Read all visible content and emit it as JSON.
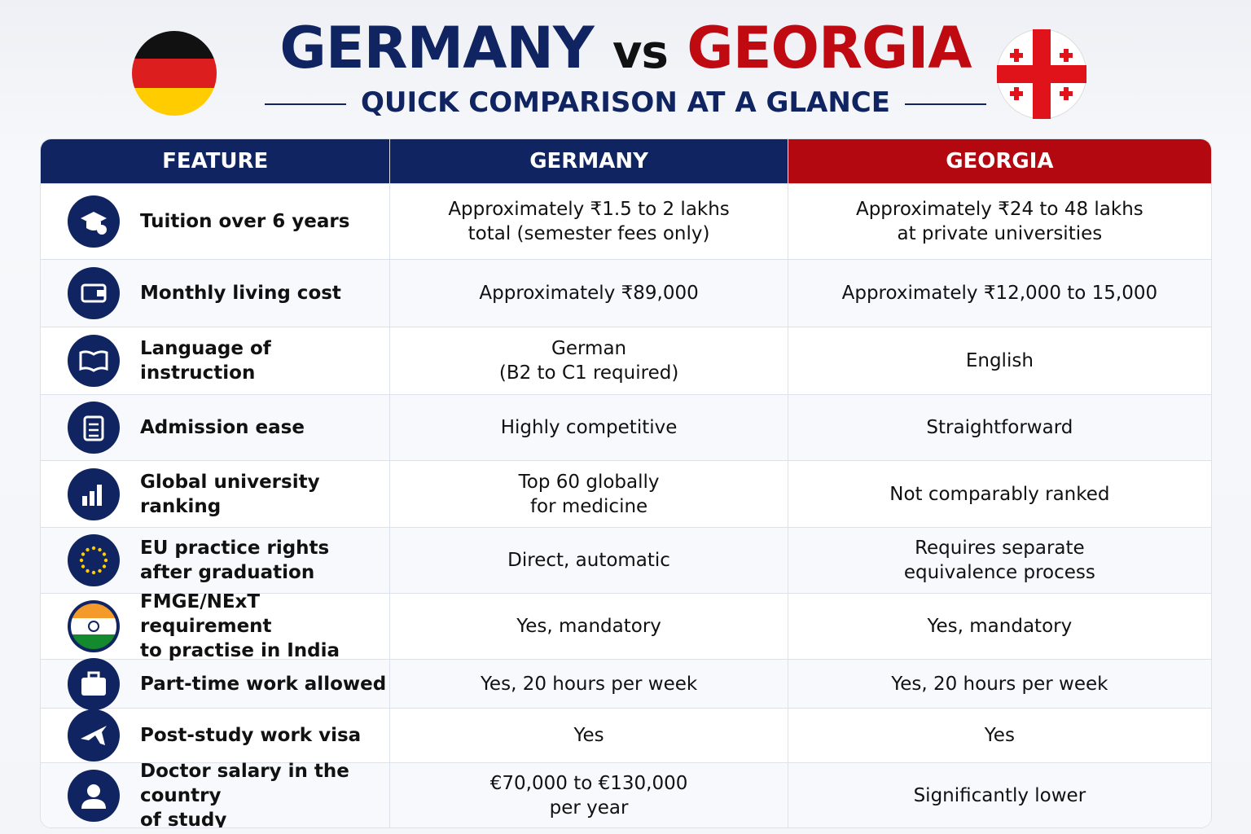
{
  "header": {
    "title_left": "GERMANY",
    "title_mid": "vs",
    "title_right": "GEORGIA",
    "subtitle": "QUICK COMPARISON AT A GLANCE"
  },
  "table": {
    "columns": [
      "FEATURE",
      "GERMANY",
      "GEORGIA"
    ],
    "rows": [
      {
        "feature": [
          "Tuition over 6 years"
        ],
        "germany": [
          "Approximately ₹1.5 to 2 lakhs",
          "total (semester fees only)"
        ],
        "georgia": [
          "Approximately ₹24 to 48 lakhs",
          "at private universities"
        ]
      },
      {
        "feature": [
          "Monthly living cost"
        ],
        "germany": [
          "Approximately ₹89,000"
        ],
        "georgia": [
          "Approximately ₹12,000 to 15,000"
        ]
      },
      {
        "feature": [
          "Language of instruction"
        ],
        "germany": [
          "German",
          "(B2 to C1 required)"
        ],
        "georgia": [
          "English"
        ]
      },
      {
        "feature": [
          "Admission ease"
        ],
        "germany": [
          "Highly competitive"
        ],
        "georgia": [
          "Straightforward"
        ]
      },
      {
        "feature": [
          "Global university ranking"
        ],
        "germany": [
          "Top 60 globally",
          "for medicine"
        ],
        "georgia": [
          "Not comparably ranked"
        ]
      },
      {
        "feature": [
          "EU practice rights",
          "after graduation"
        ],
        "germany": [
          "Direct, automatic"
        ],
        "georgia": [
          "Requires separate",
          "equivalence process"
        ]
      },
      {
        "feature": [
          "FMGE/NExT requirement",
          "to practise in India"
        ],
        "germany": [
          "Yes, mandatory"
        ],
        "georgia": [
          "Yes, mandatory"
        ]
      },
      {
        "feature": [
          "Part-time work allowed"
        ],
        "germany": [
          "Yes, 20 hours per week"
        ],
        "georgia": [
          "Yes, 20 hours per week"
        ]
      },
      {
        "feature": [
          "Post-study work visa"
        ],
        "germany": [
          "Yes"
        ],
        "georgia": [
          "Yes"
        ]
      },
      {
        "feature": [
          "Doctor salary in the country",
          "of study"
        ],
        "germany": [
          "€70,000 to €130,000",
          "per year"
        ],
        "georgia": [
          "Significantly lower"
        ]
      }
    ]
  }
}
